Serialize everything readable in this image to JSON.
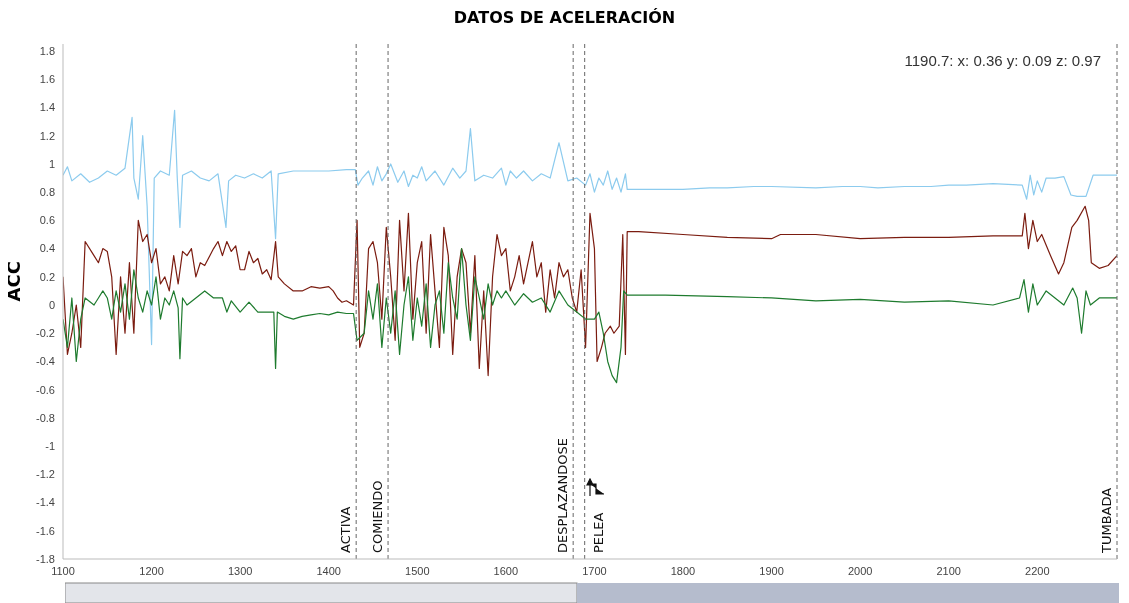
{
  "chart_data": {
    "type": "line",
    "title": "DATOS DE ACELERACIÓN",
    "ylabel": "ACC",
    "xlim": [
      1100,
      2290
    ],
    "xticks": [
      1100,
      1200,
      1300,
      1400,
      1500,
      1600,
      1700,
      1800,
      1900,
      2000,
      2100,
      2200
    ],
    "ylim": [
      -1.8,
      1.85
    ],
    "yticks": [
      -1.8,
      -1.6,
      -1.4,
      -1.2,
      -1,
      -0.8,
      -0.6,
      -0.4,
      -0.2,
      0,
      0.2,
      0.4,
      0.6,
      0.8,
      1,
      1.2,
      1.4,
      1.6,
      1.8
    ],
    "grid": false,
    "legend": false,
    "marker": "none",
    "line_style": "solid",
    "annotations": [
      "1190.7: x: 0.36 y: 0.09 z: 0.97"
    ],
    "ref_lines": [
      {
        "axis": "x",
        "value": 1431,
        "label": "ACTIVA",
        "color": "#666666",
        "line_style": "dashed"
      },
      {
        "axis": "x",
        "value": 1467,
        "label": "COMIENDO",
        "color": "#666666",
        "line_style": "dashed"
      },
      {
        "axis": "x",
        "value": 1676,
        "label": "DESPLAZANDOSE",
        "color": "#666666",
        "line_style": "dashed"
      },
      {
        "axis": "x",
        "value": 1689,
        "label": "PELEA",
        "color": "#666666",
        "line_style": "dashed"
      },
      {
        "axis": "x",
        "value": 2290,
        "label": "TUMBADA",
        "color": "#666666",
        "line_style": "dashed"
      }
    ],
    "series": [
      {
        "color": "#8ccbee",
        "x": [
          1100,
          1105,
          1110,
          1120,
          1130,
          1140,
          1150,
          1160,
          1170,
          1178,
          1180,
          1185,
          1190,
          1195,
          1200,
          1203,
          1210,
          1220,
          1226,
          1229,
          1232,
          1235,
          1245,
          1255,
          1265,
          1275,
          1284,
          1287,
          1295,
          1305,
          1315,
          1325,
          1335,
          1340,
          1343,
          1360,
          1380,
          1400,
          1420,
          1430,
          1433,
          1438,
          1445,
          1450,
          1455,
          1460,
          1465,
          1470,
          1478,
          1485,
          1490,
          1495,
          1500,
          1505,
          1510,
          1520,
          1530,
          1540,
          1548,
          1555,
          1560,
          1565,
          1575,
          1585,
          1595,
          1600,
          1605,
          1612,
          1620,
          1630,
          1640,
          1650,
          1660,
          1670,
          1680,
          1690,
          1695,
          1700,
          1705,
          1710,
          1715,
          1720,
          1725,
          1730,
          1735,
          1737,
          1760,
          1800,
          1830,
          1850,
          1880,
          1900,
          1950,
          1980,
          2000,
          2020,
          2050,
          2080,
          2100,
          2120,
          2150,
          2183,
          2188,
          2192,
          2196,
          2200,
          2205,
          2210,
          2220,
          2230,
          2238,
          2245,
          2255,
          2263,
          2270,
          2290
        ],
        "values": [
          0.92,
          0.98,
          0.88,
          0.93,
          0.87,
          0.9,
          0.95,
          0.92,
          0.97,
          1.33,
          0.9,
          0.75,
          1.2,
          0.7,
          -0.28,
          0.9,
          0.95,
          0.92,
          1.38,
          0.9,
          0.55,
          0.92,
          0.95,
          0.9,
          0.88,
          0.93,
          0.55,
          0.88,
          0.92,
          0.9,
          0.93,
          0.9,
          0.95,
          0.47,
          0.93,
          0.95,
          0.95,
          0.95,
          0.96,
          0.96,
          0.85,
          0.9,
          0.95,
          0.85,
          0.98,
          0.88,
          0.93,
          1.0,
          0.87,
          0.95,
          0.84,
          0.92,
          0.9,
          0.98,
          0.88,
          0.95,
          0.85,
          0.97,
          0.9,
          0.95,
          1.25,
          0.88,
          0.92,
          0.9,
          0.97,
          0.85,
          0.95,
          0.9,
          0.95,
          0.88,
          0.93,
          0.9,
          1.15,
          0.88,
          0.9,
          0.85,
          0.93,
          0.8,
          0.9,
          0.85,
          0.95,
          0.82,
          0.9,
          0.8,
          0.93,
          0.82,
          0.82,
          0.82,
          0.83,
          0.83,
          0.84,
          0.84,
          0.83,
          0.84,
          0.84,
          0.83,
          0.84,
          0.84,
          0.85,
          0.85,
          0.86,
          0.85,
          0.75,
          0.92,
          0.78,
          0.88,
          0.8,
          0.9,
          0.9,
          0.91,
          0.78,
          0.77,
          0.77,
          0.92,
          0.92,
          0.92
        ]
      },
      {
        "color": "#7b1c10",
        "x": [
          1100,
          1105,
          1110,
          1115,
          1120,
          1125,
          1135,
          1140,
          1145,
          1150,
          1155,
          1160,
          1165,
          1170,
          1175,
          1180,
          1185,
          1190,
          1195,
          1200,
          1205,
          1210,
          1215,
          1220,
          1225,
          1230,
          1235,
          1240,
          1245,
          1250,
          1255,
          1260,
          1270,
          1275,
          1280,
          1285,
          1290,
          1295,
          1300,
          1305,
          1310,
          1315,
          1320,
          1325,
          1330,
          1335,
          1340,
          1343,
          1350,
          1360,
          1370,
          1380,
          1390,
          1400,
          1405,
          1410,
          1415,
          1420,
          1428,
          1432,
          1435,
          1440,
          1445,
          1450,
          1455,
          1460,
          1465,
          1470,
          1475,
          1480,
          1485,
          1490,
          1495,
          1500,
          1505,
          1510,
          1515,
          1520,
          1525,
          1530,
          1535,
          1540,
          1545,
          1550,
          1555,
          1560,
          1565,
          1570,
          1575,
          1580,
          1585,
          1590,
          1595,
          1600,
          1605,
          1610,
          1615,
          1620,
          1625,
          1630,
          1635,
          1640,
          1645,
          1650,
          1655,
          1660,
          1665,
          1670,
          1675,
          1680,
          1685,
          1690,
          1695,
          1700,
          1703,
          1708,
          1712,
          1718,
          1722,
          1728,
          1732,
          1735,
          1737,
          1750,
          1800,
          1850,
          1900,
          1910,
          1950,
          2000,
          2050,
          2100,
          2150,
          2183,
          2186,
          2190,
          2195,
          2200,
          2205,
          2215,
          2224,
          2230,
          2239,
          2245,
          2254,
          2258,
          2261,
          2270,
          2280,
          2290
        ],
        "values": [
          0.2,
          -0.35,
          -0.2,
          0.0,
          -0.3,
          0.45,
          0.35,
          0.3,
          0.4,
          0.38,
          0.2,
          -0.35,
          0.2,
          -0.2,
          0.3,
          -0.2,
          0.6,
          0.45,
          0.5,
          0.3,
          0.4,
          0.15,
          0.2,
          0.1,
          0.35,
          0.15,
          0.38,
          0.35,
          0.4,
          0.2,
          0.3,
          0.28,
          0.4,
          0.45,
          0.35,
          0.45,
          0.38,
          0.42,
          0.25,
          0.25,
          0.38,
          0.3,
          0.33,
          0.22,
          0.25,
          0.18,
          0.45,
          0.2,
          0.15,
          0.1,
          0.1,
          0.13,
          0.12,
          0.13,
          0.1,
          0.05,
          0.02,
          0.03,
          0.0,
          0.6,
          -0.3,
          -0.2,
          0.4,
          0.45,
          0.3,
          -0.1,
          0.55,
          0.2,
          -0.25,
          0.6,
          0.1,
          0.65,
          -0.1,
          0.3,
          0.45,
          -0.2,
          0.5,
          0.1,
          -0.3,
          0.55,
          0.35,
          -0.35,
          0.2,
          0.4,
          0.3,
          -0.2,
          0.35,
          -0.45,
          0.1,
          -0.5,
          0.2,
          0.5,
          0.35,
          0.4,
          0.1,
          0.2,
          0.35,
          0.15,
          0.3,
          0.45,
          0.2,
          0.3,
          -0.05,
          0.25,
          0.05,
          0.3,
          0.2,
          0.25,
          0.05,
          -0.05,
          0.25,
          -0.3,
          0.65,
          0.4,
          -0.4,
          -0.3,
          -0.2,
          -0.15,
          -0.2,
          -0.15,
          0.5,
          -0.35,
          0.52,
          0.52,
          0.5,
          0.48,
          0.47,
          0.5,
          0.5,
          0.47,
          0.48,
          0.48,
          0.49,
          0.49,
          0.65,
          0.4,
          0.6,
          0.45,
          0.5,
          0.35,
          0.22,
          0.3,
          0.55,
          0.6,
          0.7,
          0.6,
          0.3,
          0.26,
          0.28,
          0.35
        ]
      },
      {
        "color": "#1e7b2e",
        "x": [
          1100,
          1105,
          1110,
          1115,
          1120,
          1125,
          1135,
          1140,
          1145,
          1150,
          1155,
          1160,
          1165,
          1170,
          1175,
          1180,
          1185,
          1190,
          1195,
          1200,
          1205,
          1210,
          1215,
          1220,
          1225,
          1230,
          1232,
          1235,
          1240,
          1250,
          1260,
          1270,
          1280,
          1285,
          1290,
          1300,
          1310,
          1320,
          1330,
          1338,
          1340,
          1342,
          1350,
          1360,
          1370,
          1380,
          1390,
          1400,
          1410,
          1420,
          1428,
          1432,
          1440,
          1445,
          1450,
          1455,
          1460,
          1465,
          1470,
          1475,
          1480,
          1485,
          1490,
          1495,
          1500,
          1505,
          1510,
          1515,
          1520,
          1525,
          1530,
          1535,
          1540,
          1545,
          1550,
          1555,
          1560,
          1565,
          1570,
          1575,
          1580,
          1585,
          1590,
          1595,
          1600,
          1610,
          1620,
          1630,
          1640,
          1650,
          1660,
          1670,
          1680,
          1690,
          1700,
          1705,
          1710,
          1715,
          1720,
          1725,
          1730,
          1733,
          1737,
          1780,
          1850,
          1900,
          1950,
          2000,
          2050,
          2100,
          2150,
          2180,
          2185,
          2190,
          2195,
          2200,
          2210,
          2220,
          2230,
          2240,
          2245,
          2250,
          2255,
          2260,
          2270,
          2290
        ],
        "values": [
          -0.1,
          -0.3,
          0.05,
          -0.4,
          -0.1,
          0.05,
          0.0,
          0.05,
          0.1,
          0.05,
          -0.1,
          0.1,
          -0.05,
          0.15,
          -0.1,
          0.25,
          0.05,
          -0.05,
          0.1,
          0.0,
          0.2,
          -0.1,
          0.05,
          0.0,
          0.1,
          -0.02,
          -0.38,
          0.05,
          0.0,
          0.05,
          0.1,
          0.05,
          0.05,
          -0.05,
          0.03,
          -0.05,
          0.02,
          -0.05,
          -0.05,
          -0.05,
          -0.45,
          -0.05,
          -0.08,
          -0.1,
          -0.08,
          -0.07,
          -0.06,
          -0.07,
          -0.05,
          -0.06,
          -0.06,
          -0.25,
          -0.2,
          0.1,
          -0.1,
          0.15,
          -0.3,
          0.05,
          -0.2,
          0.1,
          -0.35,
          0.0,
          0.2,
          -0.25,
          0.05,
          -0.15,
          0.15,
          -0.3,
          0.0,
          0.1,
          -0.2,
          0.3,
          0.05,
          -0.1,
          0.4,
          0.0,
          -0.25,
          0.2,
          0.05,
          -0.1,
          0.15,
          0.0,
          0.1,
          0.05,
          0.1,
          0.0,
          0.08,
          0.02,
          0.05,
          -0.05,
          0.1,
          0.0,
          -0.05,
          -0.1,
          -0.1,
          -0.05,
          -0.2,
          -0.4,
          -0.5,
          -0.55,
          -0.3,
          0.1,
          0.07,
          0.07,
          0.06,
          0.05,
          0.03,
          0.04,
          0.02,
          0.03,
          0.0,
          0.05,
          0.18,
          -0.05,
          0.15,
          0.0,
          0.1,
          0.05,
          0.0,
          0.12,
          0.05,
          -0.2,
          0.1,
          0.0,
          0.05,
          0.05
        ]
      }
    ]
  }
}
